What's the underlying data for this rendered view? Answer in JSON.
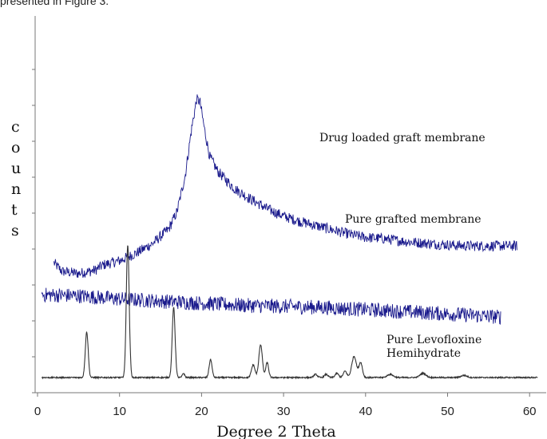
{
  "caption_fragment": "presented in Figure 3.",
  "chart_data": {
    "type": "line",
    "xlabel": "Degree 2 Theta",
    "ylabel": "counts",
    "xlim": [
      0,
      62
    ],
    "xticks": [
      0,
      10,
      20,
      30,
      40,
      50,
      60
    ],
    "grid": false,
    "y_tick_labels": false,
    "series": [
      {
        "name": "Drug loaded graft membrane",
        "color": "#1a1a8c",
        "noise": 5,
        "x": [
          2,
          3,
          5,
          7,
          8,
          10,
          12,
          14,
          16,
          17,
          18,
          18.8,
          19.4,
          19.8,
          20.4,
          21,
          22,
          24,
          26,
          28,
          30,
          32,
          35,
          38,
          40,
          42,
          45,
          48,
          50,
          52,
          55,
          58.5
        ],
        "y": [
          108,
          100,
          98,
          101,
          106,
          110,
          117,
          126,
          140,
          156,
          190,
          235,
          262,
          260,
          232,
          208,
          194,
          178,
          168,
          159,
          152,
          147,
          141,
          135,
          132,
          131,
          128,
          126,
          125,
          124,
          124,
          124
        ]
      },
      {
        "name": "Pure grafted membrane",
        "color": "#1a1a8c",
        "noise": 7,
        "x": [
          0.5,
          5,
          10,
          15,
          20,
          25,
          30,
          35,
          40,
          45,
          50,
          56.5
        ],
        "y": [
          78,
          77,
          74,
          72,
          70,
          68,
          67,
          66,
          64,
          62,
          60,
          57
        ]
      },
      {
        "name": "Pure Levofloxine Hemihydrate",
        "color": "#333333",
        "noise": 0.6,
        "baseline": 0,
        "peaks": [
          {
            "x": 6.0,
            "h": 43,
            "w": 0.25
          },
          {
            "x": 11.0,
            "h": 125,
            "w": 0.25
          },
          {
            "x": 16.6,
            "h": 66,
            "w": 0.25
          },
          {
            "x": 17.8,
            "h": 4,
            "w": 0.2
          },
          {
            "x": 21.1,
            "h": 17,
            "w": 0.25
          },
          {
            "x": 26.3,
            "h": 12,
            "w": 0.3
          },
          {
            "x": 27.2,
            "h": 31,
            "w": 0.3
          },
          {
            "x": 28.0,
            "h": 14,
            "w": 0.25
          },
          {
            "x": 33.9,
            "h": 3,
            "w": 0.3
          },
          {
            "x": 35.2,
            "h": 3,
            "w": 0.3
          },
          {
            "x": 36.5,
            "h": 4,
            "w": 0.3
          },
          {
            "x": 37.5,
            "h": 6,
            "w": 0.3
          },
          {
            "x": 38.6,
            "h": 20,
            "w": 0.4
          },
          {
            "x": 39.4,
            "h": 14,
            "w": 0.3
          },
          {
            "x": 43.0,
            "h": 3,
            "w": 0.5
          },
          {
            "x": 47.0,
            "h": 4,
            "w": 0.5
          },
          {
            "x": 52.0,
            "h": 2,
            "w": 0.5
          }
        ]
      }
    ]
  }
}
